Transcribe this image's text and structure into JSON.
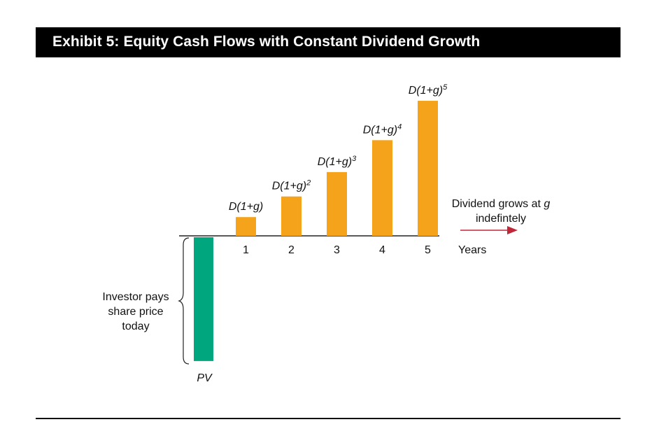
{
  "title": "Exhibit 5: Equity Cash Flows with Constant Dividend Growth",
  "chart_data": {
    "type": "bar",
    "categories": [
      "1",
      "2",
      "3",
      "4",
      "5"
    ],
    "bar_labels": [
      "D(1+g)",
      "D(1+g)2",
      "D(1+g)3",
      "D(1+g)4",
      "D(1+g)5"
    ],
    "bar_labels_parts": [
      {
        "base": "D(1+g)",
        "exp": ""
      },
      {
        "base": "D(1+g)",
        "exp": "2"
      },
      {
        "base": "D(1+g)",
        "exp": "3"
      },
      {
        "base": "D(1+g)",
        "exp": "4"
      },
      {
        "base": "D(1+g)",
        "exp": "5"
      }
    ],
    "values": [
      1,
      2.1,
      3.4,
      5.1,
      7.2
    ],
    "pv_value": -6.6,
    "x_label": "Years",
    "pv_label": "PV",
    "colors": {
      "dividend": "#f5a31a",
      "pv": "#00a67e",
      "arrow": "#c0283a",
      "axis": "#222222"
    }
  },
  "annotations": {
    "growth_line1_prefix": "Dividend grows at ",
    "growth_line1_var": "g",
    "growth_line2": "indefintely",
    "investor_lines": [
      "Investor pays",
      "share price",
      "today"
    ]
  }
}
